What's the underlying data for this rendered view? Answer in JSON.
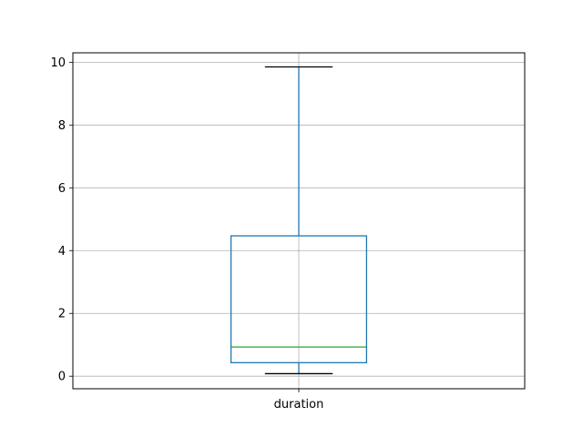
{
  "chart_data": {
    "type": "box",
    "title": "",
    "xlabel": "",
    "ylabel": "",
    "ylim": [
      -0.4,
      10.3
    ],
    "yticks": [
      0,
      2,
      4,
      6,
      8,
      10
    ],
    "ytick_labels": [
      "0",
      "2",
      "4",
      "6",
      "8",
      "10"
    ],
    "grid": true,
    "legend": "none",
    "categories": [
      "duration"
    ],
    "series": [
      {
        "category": "duration",
        "whisker_low": 0.08,
        "q1": 0.43,
        "median": 0.93,
        "q3": 4.47,
        "whisker_high": 9.85
      }
    ],
    "colors": {
      "box": "#1f77b4",
      "median": "#2ca02c",
      "caps": "#000000",
      "grid": "#b0b0b0",
      "axes": "#000000"
    }
  }
}
